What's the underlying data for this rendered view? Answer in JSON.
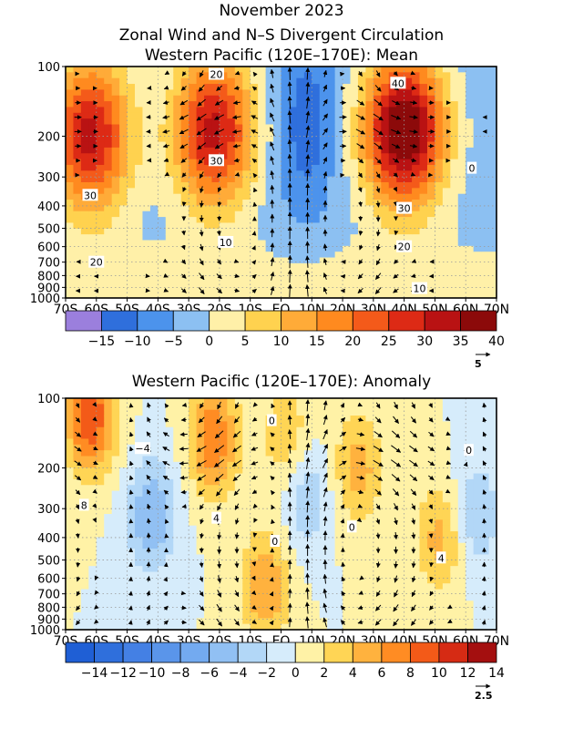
{
  "titles": {
    "line1": "November 2023",
    "line2": "Zonal Wind and N–S Divergent Circulation",
    "line3": "Western Pacific (120E–170E): Mean",
    "panel2": "Western Pacific (120E–170E): Anomaly"
  },
  "chart_data": [
    {
      "type": "heatmap",
      "title": "Western Pacific (120E–170E): Mean",
      "x_ticks": [
        "70S",
        "60S",
        "50S",
        "40S",
        "30S",
        "20S",
        "10S",
        "EQ",
        "10N",
        "20N",
        "30N",
        "40N",
        "50N",
        "60N",
        "70N"
      ],
      "y_ticks": [
        1000,
        900,
        800,
        700,
        600,
        500,
        400,
        300,
        200,
        100
      ],
      "y_scale": "log",
      "y_range": [
        1000,
        100
      ],
      "grid": true,
      "colorbar_levels": [
        -15,
        -10,
        -5,
        0,
        5,
        10,
        15,
        20,
        25,
        30,
        35,
        40
      ],
      "colorbar_labels": [
        "−15",
        "−10",
        "−5",
        "0",
        "5",
        "10",
        "15",
        "20",
        "25",
        "30",
        "35",
        "40"
      ],
      "colorbar_colors": [
        "#9b7fdd",
        "#2f6fdc",
        "#4c93ec",
        "#8cc0f2",
        "#fff0a8",
        "#ffd24f",
        "#ffab38",
        "#ff8a1f",
        "#f45a1a",
        "#dd2a15",
        "#b91213",
        "#8c0a0a"
      ],
      "contour_labels": [
        {
          "text": "20",
          "lat": -21,
          "p": 108
        },
        {
          "text": "30",
          "lat": -21,
          "p": 255
        },
        {
          "text": "30",
          "lat": -62,
          "p": 360
        },
        {
          "text": "10",
          "lat": -18,
          "p": 575
        },
        {
          "text": "20",
          "lat": -60,
          "p": 700
        },
        {
          "text": "40",
          "lat": 38,
          "p": 118
        },
        {
          "text": "30",
          "lat": 40,
          "p": 410
        },
        {
          "text": "20",
          "lat": 40,
          "p": 600
        },
        {
          "text": "10",
          "lat": 45,
          "p": 910
        },
        {
          "text": "0",
          "lat": 62,
          "p": 275
        }
      ],
      "jets": [
        {
          "lat": -62,
          "p": 200,
          "value": 35
        },
        {
          "lat": -22,
          "p": 190,
          "value": 35
        },
        {
          "lat": 40,
          "p": 190,
          "value": 45
        },
        {
          "lat": 8,
          "p": 180,
          "value": -10
        }
      ],
      "vector_reference": "5"
    },
    {
      "type": "heatmap",
      "title": "Western Pacific (120E–170E): Anomaly",
      "x_ticks": [
        "70S",
        "60S",
        "50S",
        "40S",
        "30S",
        "20S",
        "10S",
        "EQ",
        "10N",
        "20N",
        "30N",
        "40N",
        "50N",
        "60N",
        "70N"
      ],
      "y_ticks": [
        1000,
        900,
        800,
        700,
        600,
        500,
        400,
        300,
        200,
        100
      ],
      "y_scale": "log",
      "y_range": [
        1000,
        100
      ],
      "grid": true,
      "colorbar_levels": [
        -14,
        -12,
        -10,
        -8,
        -6,
        -4,
        -2,
        0,
        2,
        4,
        6,
        8,
        10,
        12,
        14
      ],
      "colorbar_labels": [
        "−14",
        "−12",
        "−10",
        "−8",
        "−6",
        "−4",
        "−2",
        "0",
        "2",
        "4",
        "6",
        "8",
        "10",
        "12",
        "14"
      ],
      "colorbar_colors": [
        "#1f5fd5",
        "#2f6fdc",
        "#4480e4",
        "#5a95ea",
        "#73aaf0",
        "#91c0f3",
        "#b2d7f7",
        "#d6ecfb",
        "#fff2a6",
        "#ffd555",
        "#ffb23e",
        "#ff8c23",
        "#f35a18",
        "#d62b14",
        "#a40f0f"
      ],
      "contour_labels": [
        {
          "text": "0",
          "lat": -3,
          "p": 125
        },
        {
          "text": "−4",
          "lat": -45,
          "p": 165
        },
        {
          "text": "8",
          "lat": -64,
          "p": 290
        },
        {
          "text": "4",
          "lat": -21,
          "p": 330
        },
        {
          "text": "0",
          "lat": 23,
          "p": 360
        },
        {
          "text": "0",
          "lat": -2,
          "p": 415
        },
        {
          "text": "4",
          "lat": 52,
          "p": 490
        },
        {
          "text": "0",
          "lat": 61,
          "p": 168
        }
      ],
      "anomalies": [
        {
          "lat": -62,
          "p": 120,
          "value": 10
        },
        {
          "lat": -42,
          "p": 320,
          "value": -6
        },
        {
          "lat": -22,
          "p": 150,
          "value": 8
        },
        {
          "lat": 2,
          "p": 150,
          "value": 4
        },
        {
          "lat": 8,
          "p": 260,
          "value": -4
        },
        {
          "lat": 25,
          "p": 200,
          "value": 5
        },
        {
          "lat": 52,
          "p": 400,
          "value": 5
        },
        {
          "lat": 63,
          "p": 320,
          "value": -4
        },
        {
          "lat": -5,
          "p": 650,
          "value": 6
        }
      ],
      "vector_reference": "2.5"
    }
  ]
}
